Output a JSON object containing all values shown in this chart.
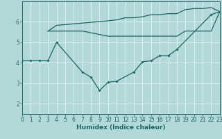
{
  "xlabel": "Humidex (Indice chaleur)",
  "bg_color": "#b2d8d8",
  "grid_color": "#e8f4f4",
  "line_color": "#1a6666",
  "xlim": [
    0,
    23
  ],
  "ylim": [
    1.5,
    7.0
  ],
  "xticks": [
    0,
    1,
    2,
    3,
    4,
    5,
    6,
    7,
    8,
    9,
    10,
    11,
    12,
    13,
    14,
    15,
    16,
    17,
    18,
    19,
    20,
    21,
    22,
    23
  ],
  "yticks": [
    2,
    3,
    4,
    5,
    6
  ],
  "curve_main": [
    [
      0,
      4.1
    ],
    [
      1,
      4.1
    ],
    [
      2,
      4.1
    ],
    [
      3,
      4.1
    ],
    [
      4,
      5.0
    ],
    [
      7,
      3.55
    ],
    [
      8,
      3.3
    ],
    [
      9,
      2.65
    ],
    [
      10,
      3.05
    ],
    [
      11,
      3.1
    ],
    [
      13,
      3.55
    ],
    [
      14,
      4.05
    ],
    [
      15,
      4.1
    ],
    [
      16,
      4.35
    ],
    [
      17,
      4.35
    ],
    [
      18,
      4.65
    ],
    [
      22,
      6.35
    ],
    [
      23,
      6.5
    ]
  ],
  "curve_upper": [
    [
      3,
      5.55
    ],
    [
      4,
      5.83
    ],
    [
      10,
      6.05
    ],
    [
      11,
      6.1
    ],
    [
      12,
      6.2
    ],
    [
      13,
      6.2
    ],
    [
      14,
      6.25
    ],
    [
      15,
      6.35
    ],
    [
      16,
      6.35
    ],
    [
      17,
      6.4
    ],
    [
      18,
      6.4
    ],
    [
      19,
      6.6
    ],
    [
      20,
      6.65
    ],
    [
      21,
      6.65
    ],
    [
      22,
      6.7
    ],
    [
      23,
      6.5
    ]
  ],
  "curve_lower": [
    [
      3,
      5.55
    ],
    [
      4,
      5.55
    ],
    [
      5,
      5.55
    ],
    [
      6,
      5.55
    ],
    [
      7,
      5.55
    ],
    [
      10,
      5.3
    ],
    [
      11,
      5.3
    ],
    [
      12,
      5.3
    ],
    [
      13,
      5.3
    ],
    [
      14,
      5.3
    ],
    [
      15,
      5.3
    ],
    [
      16,
      5.3
    ],
    [
      17,
      5.3
    ],
    [
      18,
      5.3
    ],
    [
      19,
      5.55
    ],
    [
      20,
      5.55
    ],
    [
      22,
      5.55
    ],
    [
      23,
      6.5
    ]
  ]
}
